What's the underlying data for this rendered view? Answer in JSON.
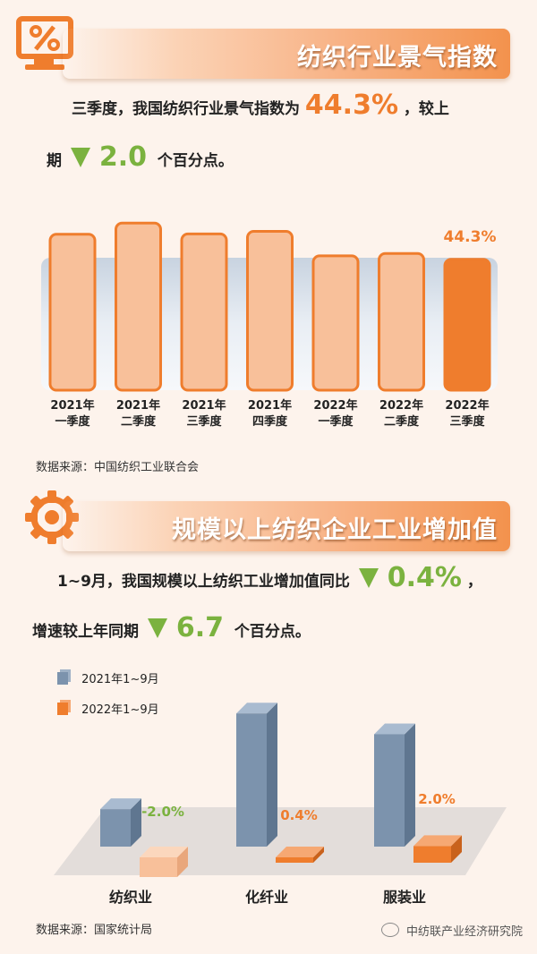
{
  "section1": {
    "title": "纺织行业景气指数",
    "text_a": "三季度，我国纺织行业景气指数为",
    "value": "44.3%",
    "text_b": "，较上",
    "text_c": "期",
    "change": "2.0",
    "text_d": "个百分点。",
    "source": "数据来源：中国纺织工业联合会",
    "icon": "percent-monitor-icon"
  },
  "section2": {
    "title": "规模以上纺织企业工业增加值",
    "text_a": "1~9月，我国规模以上纺织工业增加值同比",
    "change_a": "0.4%",
    "text_b": "，",
    "text_c": "增速较上年同期",
    "change_b": "6.7",
    "text_d": "个百分点。",
    "source": "数据来源：国家统计局",
    "icon": "gear-icon"
  },
  "watermark": "中纺联产业经济研究院",
  "colors": {
    "orange": "#ef7d2d",
    "light_orange": "#f8c09a",
    "green": "#7bb23f",
    "steel": "#7c93ad"
  },
  "chart_data": [
    {
      "type": "bar",
      "title": "",
      "categories": [
        "2021年一季度",
        "2021年二季度",
        "2021年三季度",
        "2021年四季度",
        "2022年一季度",
        "2022年二季度",
        "2022年三季度"
      ],
      "category_lines": [
        [
          "2021年",
          "一季度"
        ],
        [
          "2021年",
          "二季度"
        ],
        [
          "2021年",
          "三季度"
        ],
        [
          "2021年",
          "四季度"
        ],
        [
          "2022年",
          "一季度"
        ],
        [
          "2022年",
          "二季度"
        ],
        [
          "2022年",
          "三季度"
        ]
      ],
      "values": [
        52.8,
        56.6,
        52.9,
        53.8,
        45.5,
        46.3,
        44.3
      ],
      "data_labels": [
        "",
        "",
        "",
        "",
        "",
        "",
        "44.3%"
      ],
      "ylim": [
        0,
        60
      ]
    },
    {
      "type": "bar",
      "categories": [
        "纺织业",
        "化纤业",
        "服装业"
      ],
      "series": [
        {
          "name": "2021年1~9月",
          "values": [
            4.5,
            16.0,
            13.5
          ],
          "labels": [
            "",
            "",
            ""
          ]
        },
        {
          "name": "2022年1~9月",
          "values": [
            -2.0,
            0.4,
            2.0
          ],
          "labels": [
            "-2.0%",
            "0.4%",
            "2.0%"
          ]
        }
      ],
      "legend": "top-left"
    }
  ]
}
